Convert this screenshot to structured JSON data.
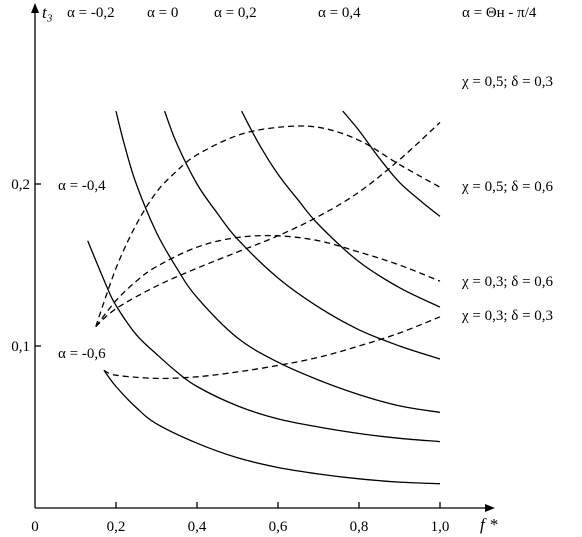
{
  "chart_data": {
    "type": "line",
    "xlabel": "f *",
    "ylabel": "t₃",
    "xlim": [
      0,
      1.1
    ],
    "ylim": [
      0,
      0.245
    ],
    "x_ticks": [
      {
        "value": 0,
        "label": "0"
      },
      {
        "value": 0.2,
        "label": "0,2"
      },
      {
        "value": 0.4,
        "label": "0,4"
      },
      {
        "value": 0.6,
        "label": "0,6"
      },
      {
        "value": 0.8,
        "label": "0,8"
      },
      {
        "value": 1.0,
        "label": "1,0"
      }
    ],
    "y_ticks": [
      {
        "value": 0.1,
        "label": "0,1"
      },
      {
        "value": 0.2,
        "label": "0,2"
      }
    ],
    "grid": false,
    "series": [
      {
        "name": "α = -0,6",
        "style": "solid",
        "x": [
          0.17,
          0.2,
          0.25,
          0.3,
          0.4,
          0.5,
          0.6,
          0.7,
          0.8,
          0.9,
          1.0
        ],
        "y": [
          0.085,
          0.075,
          0.062,
          0.052,
          0.04,
          0.031,
          0.025,
          0.021,
          0.018,
          0.016,
          0.015
        ]
      },
      {
        "name": "α = -0,4",
        "style": "solid",
        "x": [
          0.13,
          0.18,
          0.2,
          0.25,
          0.3,
          0.35,
          0.4,
          0.5,
          0.6,
          0.7,
          0.8,
          0.9,
          1.0
        ],
        "y": [
          0.165,
          0.135,
          0.125,
          0.107,
          0.095,
          0.084,
          0.075,
          0.063,
          0.055,
          0.05,
          0.046,
          0.043,
          0.041
        ]
      },
      {
        "name": "α = -0,2",
        "style": "solid",
        "x": [
          0.2,
          0.22,
          0.25,
          0.3,
          0.35,
          0.4,
          0.5,
          0.6,
          0.7,
          0.8,
          0.9,
          1.0
        ],
        "y": [
          0.245,
          0.225,
          0.2,
          0.17,
          0.148,
          0.13,
          0.105,
          0.09,
          0.079,
          0.07,
          0.063,
          0.059
        ]
      },
      {
        "name": "α = 0",
        "style": "solid",
        "x": [
          0.32,
          0.35,
          0.4,
          0.45,
          0.5,
          0.6,
          0.7,
          0.8,
          0.9,
          1.0
        ],
        "y": [
          0.245,
          0.225,
          0.2,
          0.182,
          0.166,
          0.142,
          0.124,
          0.11,
          0.1,
          0.092
        ]
      },
      {
        "name": "α = 0,2",
        "style": "solid",
        "x": [
          0.51,
          0.55,
          0.6,
          0.65,
          0.7,
          0.8,
          0.9,
          1.0
        ],
        "y": [
          0.245,
          0.226,
          0.206,
          0.19,
          0.175,
          0.152,
          0.136,
          0.124
        ]
      },
      {
        "name": "α = 0,4",
        "style": "solid",
        "x": [
          0.76,
          0.8,
          0.85,
          0.9,
          0.95,
          1.0
        ],
        "y": [
          0.245,
          0.233,
          0.216,
          0.201,
          0.19,
          0.18
        ]
      },
      {
        "name": "χ = 0,5; δ = 0,3",
        "style": "dashed",
        "x": [
          0.15,
          0.2,
          0.3,
          0.4,
          0.5,
          0.6,
          0.7,
          0.8,
          0.9,
          1.0
        ],
        "y": [
          0.112,
          0.123,
          0.137,
          0.148,
          0.158,
          0.168,
          0.18,
          0.195,
          0.215,
          0.238
        ]
      },
      {
        "name": "χ = 0,5; δ = 0,6",
        "style": "dashed",
        "x": [
          0.15,
          0.2,
          0.25,
          0.3,
          0.35,
          0.4,
          0.5,
          0.6,
          0.7,
          0.8,
          0.9,
          1.0
        ],
        "y": [
          0.112,
          0.148,
          0.175,
          0.195,
          0.208,
          0.218,
          0.23,
          0.235,
          0.235,
          0.227,
          0.212,
          0.198
        ]
      },
      {
        "name": "χ = 0,3; δ = 0,6",
        "style": "dashed",
        "x": [
          0.15,
          0.2,
          0.25,
          0.3,
          0.4,
          0.5,
          0.6,
          0.7,
          0.8,
          0.9,
          1.0
        ],
        "y": [
          0.112,
          0.128,
          0.14,
          0.149,
          0.161,
          0.167,
          0.168,
          0.165,
          0.158,
          0.15,
          0.14
        ]
      },
      {
        "name": "χ = 0,3; δ = 0,3",
        "style": "dashed",
        "x": [
          0.17,
          0.2,
          0.3,
          0.4,
          0.5,
          0.6,
          0.7,
          0.8,
          0.9,
          1.0
        ],
        "y": [
          0.085,
          0.082,
          0.08,
          0.081,
          0.084,
          0.088,
          0.093,
          0.1,
          0.108,
          0.118
        ]
      }
    ]
  },
  "labels": {
    "alpha_m02": "α = -0,2",
    "alpha_0": "α = 0",
    "alpha_02": "α = 0,2",
    "alpha_04": "α = 0,4",
    "alpha_theta": "α = Θн - π/4",
    "alpha_m04": "α = -0,4",
    "alpha_m06": "α = -0,6",
    "chi05_d03": "χ = 0,5; δ = 0,3",
    "chi05_d06": "χ = 0,5; δ = 0,6",
    "chi03_d06": "χ = 0,3; δ = 0,6",
    "chi03_d03": "χ = 0,3; δ = 0,3"
  }
}
